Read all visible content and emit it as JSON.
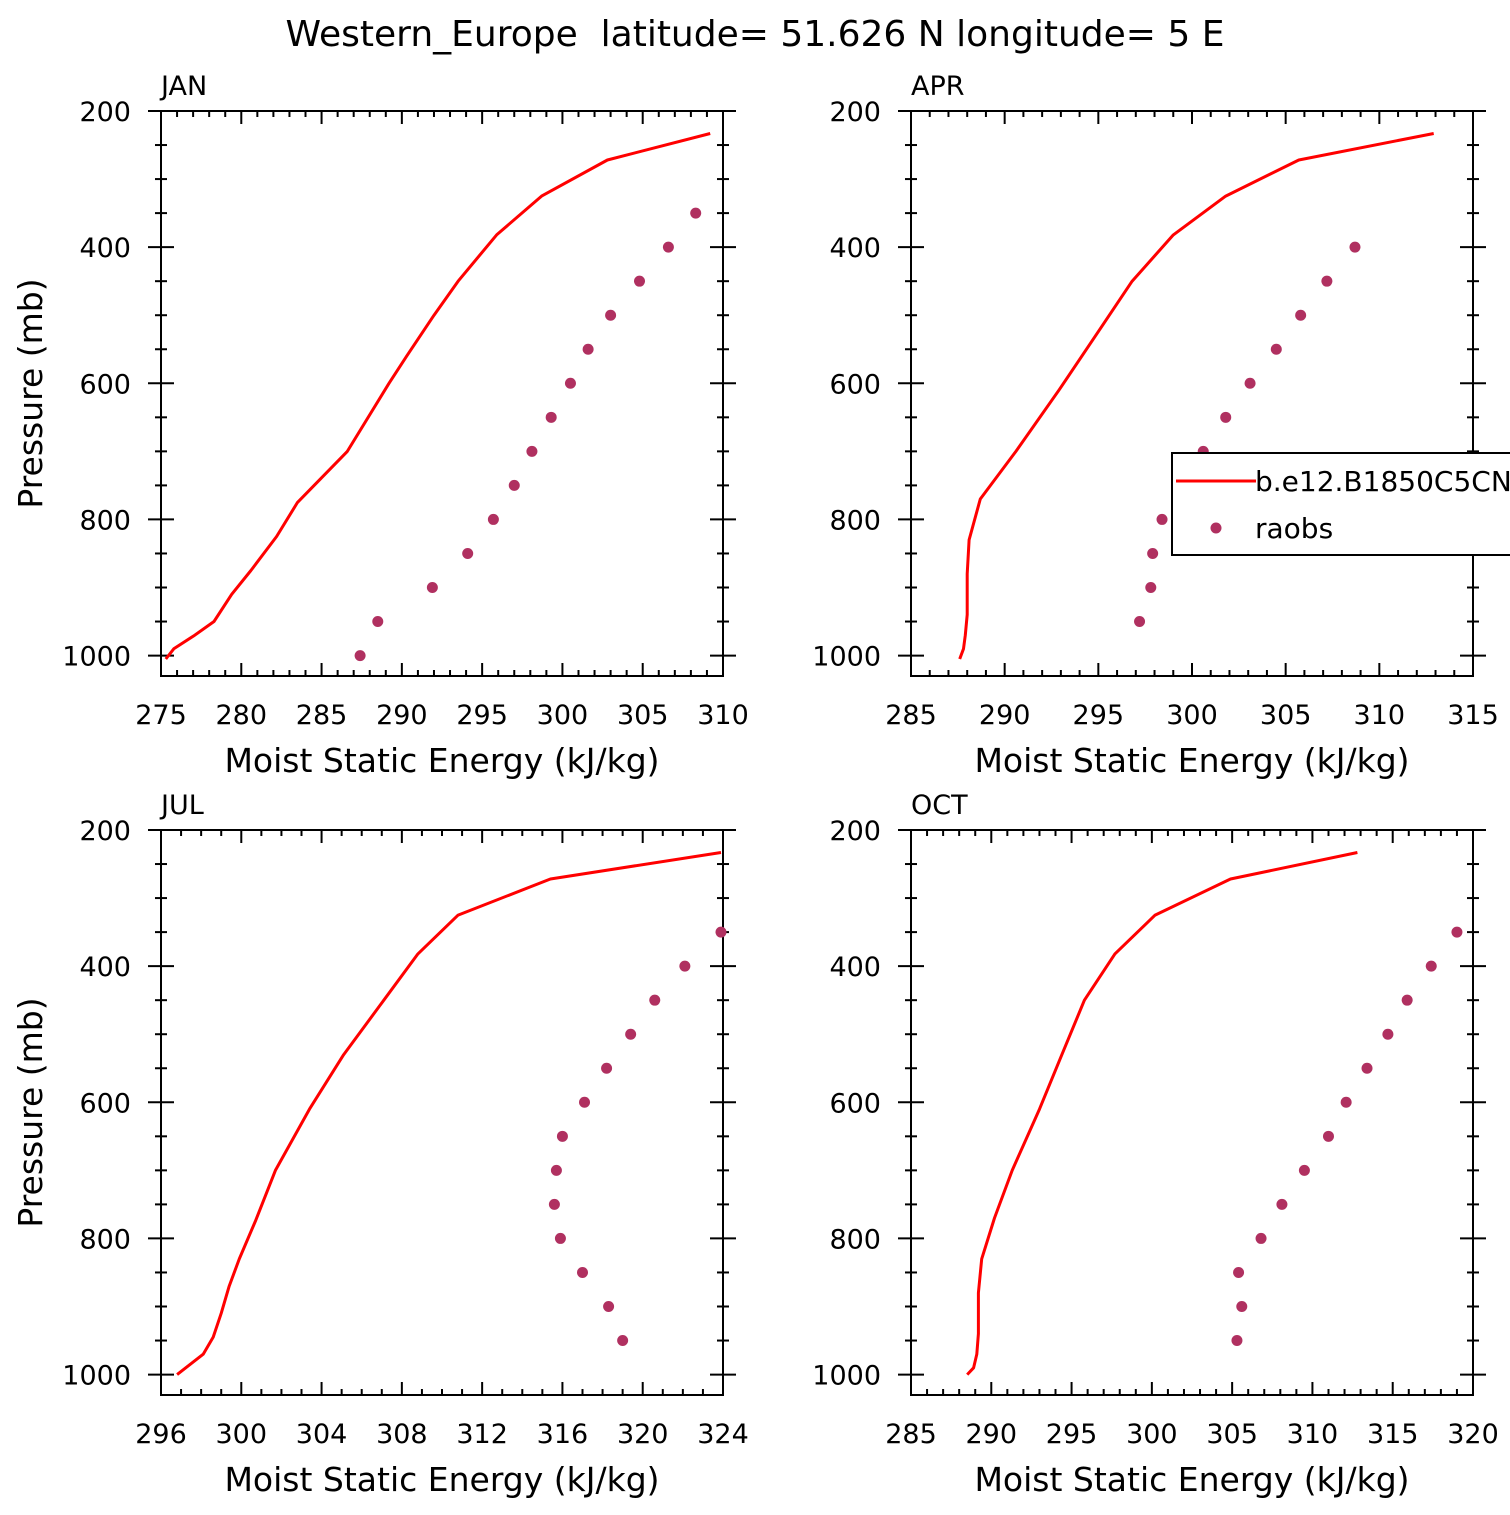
{
  "title": "Western_Europe  latitude= 51.626 N longitude= 5 E",
  "colors": {
    "model": "#ff0000",
    "obs": "#b03060",
    "axis": "#000000",
    "background": "#ffffff"
  },
  "legend": {
    "entries": [
      {
        "label": "b.e12.B1850C5CN",
        "kind": "line"
      },
      {
        "label": "raobs",
        "kind": "marker"
      }
    ]
  },
  "chart_data": [
    {
      "type": "line+scatter",
      "panel": "JAN",
      "title": "JAN",
      "xlabel": "Moist Static Energy (kJ/kg)",
      "ylabel": "Pressure (mb)",
      "xlim": [
        275,
        310
      ],
      "ylim": [
        1030,
        200
      ],
      "xticks": [
        275,
        280,
        285,
        290,
        295,
        300,
        305,
        310
      ],
      "xminor": 1,
      "yticks": [
        200,
        400,
        600,
        800,
        1000
      ],
      "yminor": 50,
      "series": [
        {
          "name": "b.e12.B1850C5CN",
          "style": "line",
          "x": [
            309.2,
            302.8,
            298.7,
            295.9,
            293.5,
            292.0,
            290.3,
            289.2,
            286.6,
            283.5,
            282.2,
            280.6,
            279.4,
            278.3,
            277.1,
            275.8,
            275.3
          ],
          "y": [
            233,
            272,
            325,
            382,
            450,
            500,
            560,
            600,
            700,
            775,
            825,
            875,
            910,
            950,
            970,
            990,
            1005
          ]
        },
        {
          "name": "raobs",
          "style": "marker",
          "x": [
            308.3,
            306.6,
            304.8,
            303.0,
            301.6,
            300.5,
            299.3,
            298.1,
            297.0,
            295.7,
            294.1,
            291.9,
            288.5,
            287.4
          ],
          "y": [
            350,
            400,
            450,
            500,
            550,
            600,
            650,
            700,
            750,
            800,
            850,
            900,
            950,
            1000
          ]
        }
      ]
    },
    {
      "type": "line+scatter",
      "panel": "APR",
      "title": "APR",
      "xlabel": "Moist Static Energy (kJ/kg)",
      "ylabel": "",
      "xlim": [
        285,
        315
      ],
      "ylim": [
        1030,
        200
      ],
      "xticks": [
        285,
        290,
        295,
        300,
        305,
        310,
        315
      ],
      "xminor": 1,
      "yticks": [
        200,
        400,
        600,
        800,
        1000
      ],
      "yminor": 50,
      "series": [
        {
          "name": "b.e12.B1850C5CN",
          "style": "line",
          "x": [
            312.9,
            305.7,
            301.8,
            299.0,
            296.8,
            295.1,
            292.9,
            290.6,
            288.7,
            288.1,
            288.0,
            288.0,
            287.9,
            287.8,
            287.6
          ],
          "y": [
            233,
            272,
            325,
            382,
            450,
            520,
            610,
            700,
            770,
            830,
            880,
            940,
            970,
            990,
            1005
          ]
        },
        {
          "name": "raobs",
          "style": "marker",
          "x": [
            308.7,
            307.2,
            305.8,
            304.5,
            303.1,
            301.8,
            300.6,
            299.4,
            298.4,
            297.9,
            297.8,
            297.2
          ],
          "y": [
            400,
            450,
            500,
            550,
            600,
            650,
            700,
            750,
            800,
            850,
            900,
            950
          ]
        }
      ]
    },
    {
      "type": "line+scatter",
      "panel": "JUL",
      "title": "JUL",
      "xlabel": "Moist Static Energy (kJ/kg)",
      "ylabel": "Pressure (mb)",
      "xlim": [
        296,
        324
      ],
      "ylim": [
        1030,
        200
      ],
      "xticks": [
        296,
        300,
        304,
        308,
        312,
        316,
        320,
        324
      ],
      "xminor": 1,
      "yticks": [
        200,
        400,
        600,
        800,
        1000
      ],
      "yminor": 50,
      "series": [
        {
          "name": "b.e12.B1850C5CN",
          "style": "line",
          "x": [
            323.9,
            315.4,
            310.8,
            308.8,
            307.1,
            305.1,
            303.4,
            301.7,
            300.7,
            299.9,
            299.4,
            299.0,
            298.6,
            298.1,
            296.8
          ],
          "y": [
            233,
            272,
            325,
            382,
            450,
            530,
            610,
            700,
            775,
            830,
            870,
            910,
            945,
            970,
            1000
          ]
        },
        {
          "name": "raobs",
          "style": "marker",
          "x": [
            323.9,
            322.1,
            320.6,
            319.4,
            318.2,
            317.1,
            316.0,
            315.7,
            315.6,
            315.9,
            317.0,
            318.3,
            319.0
          ],
          "y": [
            350,
            400,
            450,
            500,
            550,
            600,
            650,
            700,
            750,
            800,
            850,
            900,
            950
          ]
        }
      ]
    },
    {
      "type": "line+scatter",
      "panel": "OCT",
      "title": "OCT",
      "xlabel": "Moist Static Energy (kJ/kg)",
      "ylabel": "",
      "xlim": [
        285,
        320
      ],
      "ylim": [
        1030,
        200
      ],
      "xticks": [
        285,
        290,
        295,
        300,
        305,
        310,
        315,
        320
      ],
      "xminor": 1,
      "yticks": [
        200,
        400,
        600,
        800,
        1000
      ],
      "yminor": 50,
      "series": [
        {
          "name": "b.e12.B1850C5CN",
          "style": "line",
          "x": [
            312.8,
            304.9,
            300.2,
            297.7,
            295.8,
            294.4,
            293.0,
            291.3,
            290.2,
            289.4,
            289.2,
            289.2,
            289.1,
            288.9,
            288.5
          ],
          "y": [
            233,
            272,
            325,
            382,
            450,
            530,
            610,
            700,
            770,
            830,
            880,
            940,
            970,
            990,
            1000
          ]
        },
        {
          "name": "raobs",
          "style": "marker",
          "x": [
            319.0,
            317.4,
            315.9,
            314.7,
            313.4,
            312.1,
            311.0,
            309.5,
            308.1,
            306.8,
            305.4,
            305.6,
            305.3
          ],
          "y": [
            350,
            400,
            450,
            500,
            550,
            600,
            650,
            700,
            750,
            800,
            850,
            900,
            950
          ]
        }
      ]
    }
  ]
}
